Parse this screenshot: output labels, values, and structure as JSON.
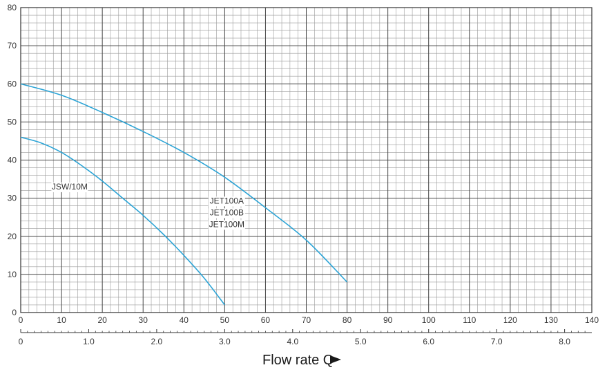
{
  "chart_data": {
    "type": "line",
    "title": "",
    "xlabel": "Flow rate Q",
    "ylabel": "",
    "xlim": [
      0,
      140
    ],
    "ylim": [
      0,
      80
    ],
    "x_ticks": [
      "0",
      "10",
      "20",
      "30",
      "40",
      "50",
      "60",
      "70",
      "80",
      "90",
      "100",
      "110",
      "120",
      "130",
      "140"
    ],
    "x_ticks_secondary": [
      "0",
      "1.0",
      "2.0",
      "3.0",
      "4.0",
      "5.0",
      "6.0",
      "7.0",
      "8.0"
    ],
    "y_ticks": [
      "0",
      "10",
      "20",
      "30",
      "40",
      "50",
      "60",
      "70",
      "80"
    ],
    "grid": true,
    "line_color": "#2ca4d6",
    "series": [
      {
        "name": "JSW/10M",
        "x": [
          0,
          5,
          10,
          15,
          20,
          25,
          30,
          35,
          40,
          45,
          50
        ],
        "y": [
          46,
          44.5,
          42,
          38.5,
          34.5,
          30,
          25.5,
          20.5,
          15,
          9,
          2
        ]
      },
      {
        "name": "JET100A JET100B JET100M",
        "labels": [
          "JET100A",
          "JET100B",
          "JET100M"
        ],
        "x": [
          0,
          10,
          20,
          30,
          40,
          50,
          60,
          70,
          80
        ],
        "y": [
          60,
          57,
          52.5,
          47.5,
          42,
          35.5,
          27.5,
          19,
          8
        ]
      }
    ]
  }
}
